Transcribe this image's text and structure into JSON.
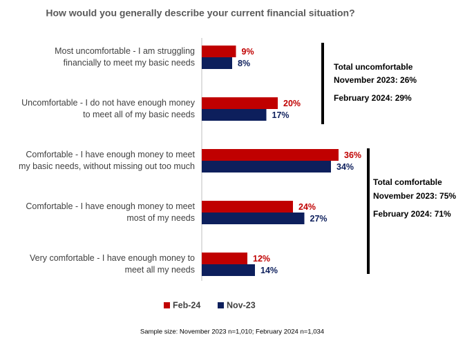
{
  "chart_data": {
    "type": "hbar",
    "title": "How would you generally describe your current financial situation?",
    "categories": [
      "Most uncomfortable - I am struggling\nfinancially to meet my basic needs",
      "Uncomfortable - I do not have enough money\nto meet all of my basic needs",
      "Comfortable - I have enough money to meet\nmy basic needs, without missing out too much",
      "Comfortable - I have enough money to meet\nmost of my needs",
      "Very comfortable - I have enough money to\nmeet all my needs"
    ],
    "series": [
      {
        "name": "Feb-24",
        "color": "#c00000",
        "values": [
          9,
          20,
          36,
          24,
          12
        ],
        "value_labels": [
          "9%",
          "20%",
          "36%",
          "24%",
          "12%"
        ]
      },
      {
        "name": "Nov-23",
        "color": "#0d1f5c",
        "values": [
          8,
          17,
          34,
          27,
          14
        ],
        "value_labels": [
          "8%",
          "17%",
          "34%",
          "27%",
          "14%"
        ]
      }
    ],
    "annotations": [
      {
        "lines": [
          "Total uncomfortable",
          "November 2023: 26%",
          "February 2024: 29%"
        ]
      },
      {
        "lines": [
          "Total comfortable",
          "November 2023: 75%",
          "February 2024: 71%"
        ]
      }
    ],
    "footnote": "Sample size: November 2023 n=1,010; February 2024 n=1,034",
    "legend": "bottom"
  }
}
